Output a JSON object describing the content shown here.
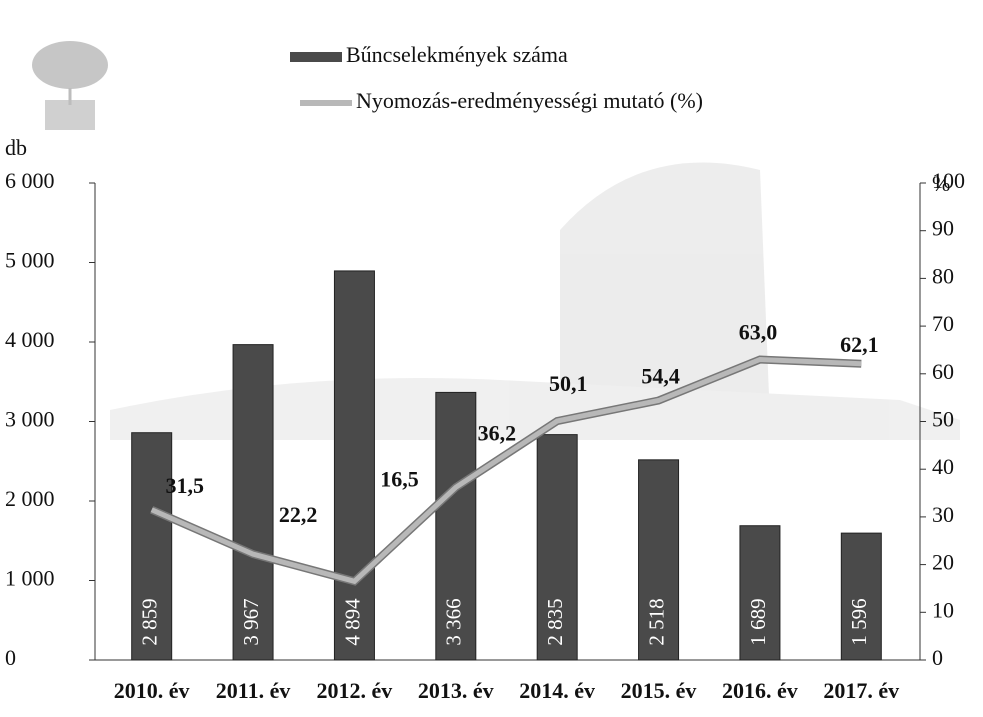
{
  "chart_data": {
    "type": "bar-line",
    "categories": [
      "2010. év",
      "2011. év",
      "2012. év",
      "2013. év",
      "2014. év",
      "2015. év",
      "2016. év",
      "2017. év"
    ],
    "series": [
      {
        "name": "Bűncselekmények száma",
        "type": "bar",
        "color": "#4a4a4a",
        "values": [
          2859,
          3967,
          4894,
          3366,
          2835,
          2518,
          1689,
          1596
        ],
        "value_labels": [
          "2 859",
          "3 967",
          "4 894",
          "3 366",
          "2 835",
          "2 518",
          "1 689",
          "1 596"
        ]
      },
      {
        "name": "Nyomozás-eredményességi mutató (%)",
        "type": "line",
        "axis": "y2",
        "color": "#b8b8b8",
        "values": [
          31.5,
          22.2,
          16.5,
          36.2,
          50.1,
          54.4,
          63.0,
          62.1
        ],
        "value_labels": [
          "31,5",
          "22,2",
          "16,5",
          "36,2",
          "50,1",
          "54,4",
          "63,0",
          "62,1"
        ]
      }
    ],
    "y_label": "db",
    "y2_label": "%",
    "ylim": [
      0,
      6000
    ],
    "yticks": [
      0,
      {
        "value": 1000,
        "label": "1 000"
      },
      {
        "value": 2000,
        "label": "2 000"
      },
      {
        "value": 3000,
        "label": "3 000"
      },
      {
        "value": 4000,
        "label": "4 000"
      },
      {
        "value": 5000,
        "label": "5 000"
      },
      {
        "value": 6000,
        "label": "6 000"
      }
    ],
    "y2lim": [
      0,
      100
    ],
    "y2ticks": [
      0,
      10,
      20,
      30,
      40,
      50,
      60,
      70,
      80,
      90,
      100
    ]
  }
}
